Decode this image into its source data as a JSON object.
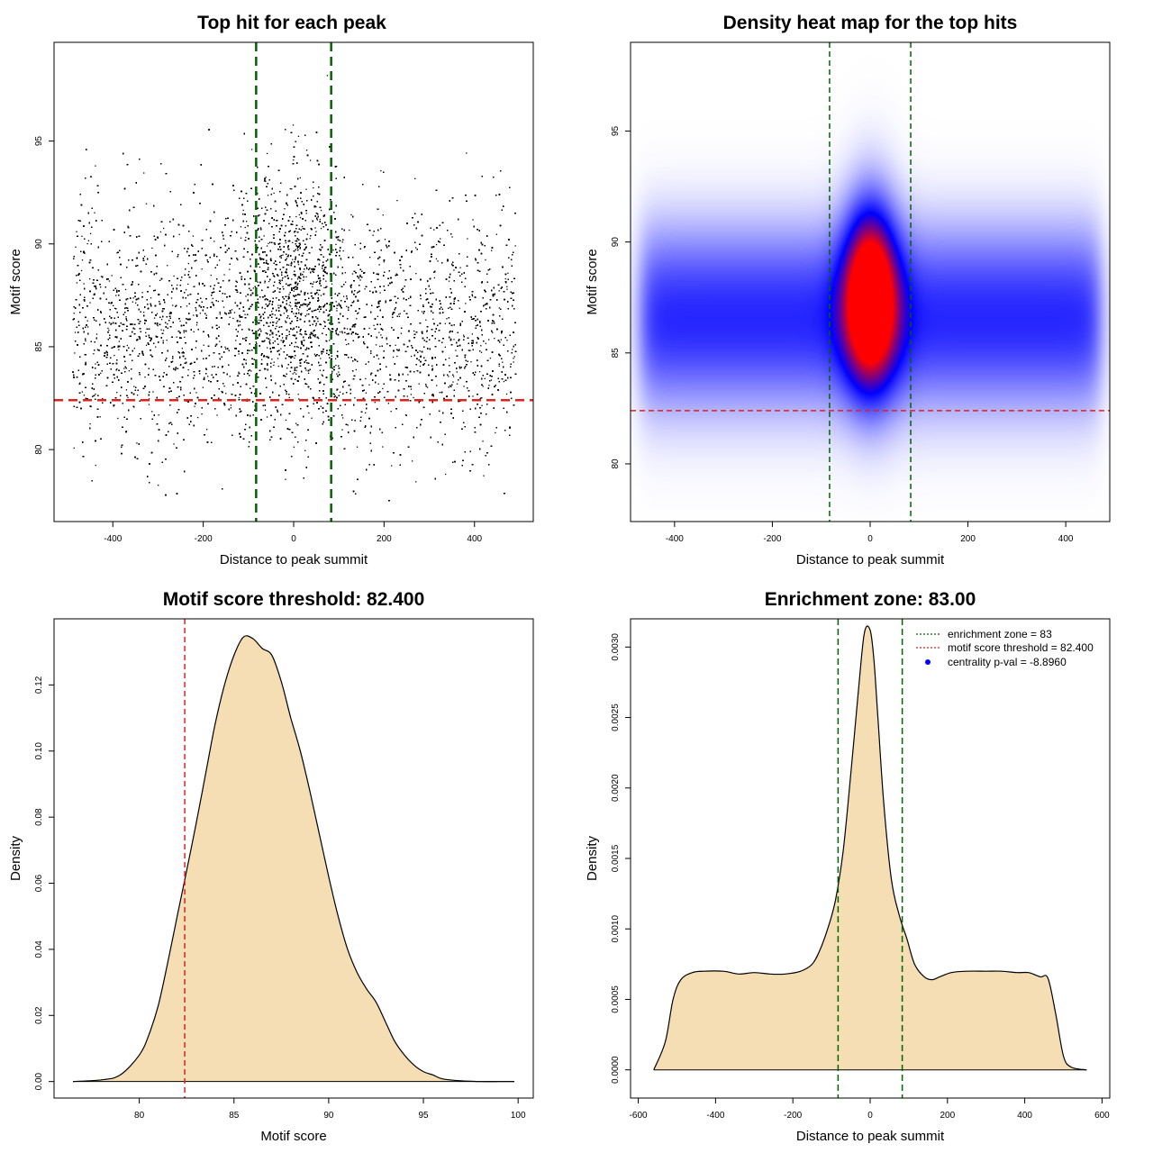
{
  "chart_data": [
    {
      "id": "scatter",
      "type": "scatter",
      "title": "Top hit for each peak",
      "xlabel": "Distance to peak summit",
      "ylabel": "Motif score",
      "xlim": [
        -530,
        530
      ],
      "ylim": [
        76.5,
        99.8
      ],
      "xticks": [
        "-400",
        "-200",
        "0",
        "200",
        "400"
      ],
      "yticks": [
        "80",
        "85",
        "90",
        "95"
      ],
      "vlines": [
        -83,
        83
      ],
      "hline": 82.4,
      "approx_points": 26000,
      "point_distribution": {
        "x_range": [
          -490,
          490
        ],
        "background_mean_score": 86.0,
        "background_sd": 2.9,
        "central_mean_score": 88.0,
        "central_sd": 3.0,
        "central_x_sd": 55
      },
      "colors": {
        "points": "#000000",
        "vline": "#006400",
        "hline": "#dd2222"
      }
    },
    {
      "id": "heatmap",
      "type": "heatmap",
      "title": "Density heat map for the top hits",
      "xlabel": "Distance to peak summit",
      "ylabel": "Motif score",
      "xlim": [
        -490,
        490
      ],
      "ylim": [
        77.4,
        99.0
      ],
      "xticks": [
        "-400",
        "-200",
        "0",
        "200",
        "400"
      ],
      "yticks": [
        "80",
        "85",
        "90",
        "95"
      ],
      "vlines": [
        -83,
        83
      ],
      "hline": 82.4,
      "colors": {
        "low": "#ffffff",
        "mid": "#0000ff",
        "high": "#ff0000",
        "vline": "#006400",
        "hline": "#dd2222"
      }
    },
    {
      "id": "score_density",
      "type": "area",
      "title": "Motif score threshold: 82.400",
      "xlabel": "Motif score",
      "ylabel": "Density",
      "xlim": [
        75.5,
        100.8
      ],
      "ylim": [
        -0.005,
        0.14
      ],
      "xticks": [
        "80",
        "85",
        "90",
        "95",
        "100"
      ],
      "yticks": [
        "0.00",
        "0.02",
        "0.04",
        "0.06",
        "0.08",
        "0.10",
        "0.12"
      ],
      "vline": 82.4,
      "x": [
        76.5,
        78,
        79,
        80,
        80.5,
        81,
        81.5,
        82,
        82.4,
        83,
        83.5,
        84,
        84.5,
        85,
        85.5,
        86,
        86.5,
        87,
        87.5,
        88,
        88.5,
        89,
        89.5,
        90,
        90.5,
        91,
        91.5,
        92,
        92.5,
        93,
        93.5,
        94,
        94.5,
        95,
        95.5,
        96,
        97,
        98,
        99,
        99.8
      ],
      "y": [
        0.0,
        0.0005,
        0.002,
        0.008,
        0.014,
        0.023,
        0.036,
        0.05,
        0.061,
        0.078,
        0.093,
        0.108,
        0.12,
        0.129,
        0.1345,
        0.134,
        0.131,
        0.129,
        0.121,
        0.11,
        0.1,
        0.088,
        0.075,
        0.062,
        0.05,
        0.04,
        0.033,
        0.028,
        0.024,
        0.018,
        0.012,
        0.008,
        0.005,
        0.003,
        0.002,
        0.0008,
        0.0002,
        0.0,
        0.0,
        0.0
      ],
      "colors": {
        "fill": "#f5deb3",
        "line": "#000000",
        "vline": "#dd2222"
      }
    },
    {
      "id": "distance_density",
      "type": "area",
      "title": "Enrichment zone: 83.00",
      "xlabel": "Distance to peak summit",
      "ylabel": "Density",
      "xlim": [
        -620,
        620
      ],
      "ylim": [
        -0.0002,
        0.0032
      ],
      "xticks": [
        "-600",
        "-400",
        "-200",
        "0",
        "200",
        "400",
        "600"
      ],
      "yticks": [
        "0.0000",
        "0.0005",
        "0.0010",
        "0.0015",
        "0.0020",
        "0.0025",
        "0.0030"
      ],
      "vlines": [
        -83,
        83
      ],
      "x": [
        -560,
        -530,
        -510,
        -490,
        -460,
        -430,
        -380,
        -340,
        -300,
        -260,
        -220,
        -180,
        -150,
        -130,
        -110,
        -90,
        -70,
        -50,
        -30,
        -15,
        0,
        10,
        20,
        35,
        55,
        75,
        95,
        115,
        140,
        160,
        180,
        210,
        250,
        300,
        340,
        380,
        410,
        440,
        460,
        480,
        500,
        520,
        560
      ],
      "y": [
        0.0,
        0.0002,
        0.0005,
        0.00064,
        0.00069,
        0.0007,
        0.0007,
        0.00068,
        0.00069,
        0.00068,
        0.00068,
        0.0007,
        0.00075,
        0.00085,
        0.001,
        0.0012,
        0.00155,
        0.0021,
        0.0027,
        0.0031,
        0.00312,
        0.0029,
        0.0025,
        0.0019,
        0.00135,
        0.0011,
        0.00093,
        0.00075,
        0.00066,
        0.00064,
        0.00066,
        0.00069,
        0.0007,
        0.0007,
        0.0007,
        0.00069,
        0.00069,
        0.00066,
        0.00065,
        0.0004,
        0.0001,
        2e-05,
        0.0
      ],
      "colors": {
        "fill": "#f5deb3",
        "line": "#000000",
        "vline": "#006400"
      },
      "legend": {
        "position": "top-right",
        "entries": [
          {
            "label": "enrichment zone = 83",
            "symbol": "dotted-line",
            "color": "#006400"
          },
          {
            "label": "motif score threshold = 82.400",
            "symbol": "dotted-line",
            "color": "#dd2222"
          },
          {
            "label": "centrality p-val = -8.8960",
            "symbol": "dot",
            "color": "#0000ff"
          }
        ]
      }
    }
  ]
}
